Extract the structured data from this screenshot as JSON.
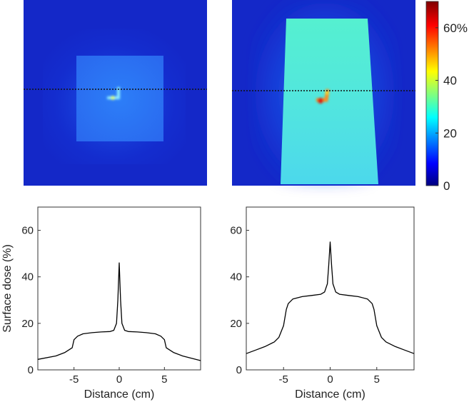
{
  "colorbar": {
    "min": 0,
    "max": 70,
    "ticks": [
      {
        "value": 0,
        "label": "0"
      },
      {
        "value": 20,
        "label": "20"
      },
      {
        "value": 40,
        "label": "40"
      },
      {
        "value": 60,
        "label": "60%"
      }
    ],
    "colormap": "jet"
  },
  "dose_maps": [
    {
      "background_dose": 6,
      "field_dose": 16,
      "hotspot_dose": 42,
      "field_shape": "square",
      "profile_line": "dotted-horizontal"
    },
    {
      "background_dose": 6,
      "field_dose": 31,
      "hotspot_dose": 52,
      "field_shape": "trapezoid",
      "profile_line": "dotted-horizontal"
    }
  ],
  "chart_data": [
    {
      "type": "line",
      "xlabel": "Distance (cm)",
      "ylabel": "Surface dose (%)",
      "xlim": [
        -9,
        9
      ],
      "ylim": [
        0,
        70
      ],
      "xticks": [
        {
          "value": -5,
          "label": "-5"
        },
        {
          "value": 0,
          "label": "0"
        },
        {
          "value": 5,
          "label": "5"
        }
      ],
      "yticks": [
        {
          "value": 0,
          "label": "0"
        },
        {
          "value": 20,
          "label": "20"
        },
        {
          "value": 40,
          "label": "40"
        },
        {
          "value": 60,
          "label": "60"
        }
      ],
      "series": [
        {
          "x": [
            -9,
            -7,
            -6,
            -5.2,
            -5,
            -4.6,
            -4,
            -3,
            -2,
            -1,
            -0.6,
            -0.3,
            -0.15,
            0,
            0.15,
            0.3,
            0.6,
            1,
            2,
            3,
            4,
            4.6,
            5,
            5.2,
            6,
            7,
            8,
            9
          ],
          "y": [
            4.5,
            6,
            7.5,
            9.5,
            13,
            14.5,
            15.5,
            16,
            16.3,
            16.5,
            17,
            20,
            30,
            46,
            30,
            20,
            17,
            16.5,
            16.3,
            16,
            15.5,
            14.5,
            13,
            9.5,
            7.5,
            6,
            5,
            4
          ]
        }
      ]
    },
    {
      "type": "line",
      "xlabel": "Distance (cm)",
      "ylabel": "",
      "xlim": [
        -9,
        9
      ],
      "ylim": [
        0,
        70
      ],
      "xticks": [
        {
          "value": -5,
          "label": "-5"
        },
        {
          "value": 0,
          "label": "0"
        },
        {
          "value": 5,
          "label": "5"
        }
      ],
      "yticks": [
        {
          "value": 0,
          "label": "0"
        },
        {
          "value": 20,
          "label": "20"
        },
        {
          "value": 40,
          "label": "40"
        },
        {
          "value": 60,
          "label": "60"
        }
      ],
      "series": [
        {
          "x": [
            -9,
            -8,
            -7,
            -6,
            -5.5,
            -5,
            -4.7,
            -4.5,
            -4,
            -3,
            -2,
            -1,
            -0.6,
            -0.3,
            -0.15,
            0,
            0.15,
            0.3,
            0.6,
            1,
            2,
            3,
            4,
            4.5,
            4.7,
            5,
            5.5,
            6,
            7,
            8,
            9
          ],
          "y": [
            7,
            8.5,
            10,
            12,
            14,
            19,
            26,
            28.5,
            30.5,
            31.5,
            32,
            32.5,
            33.5,
            37,
            45,
            55,
            45,
            37,
            33.5,
            32.5,
            32,
            31.5,
            30.5,
            28.5,
            26,
            19,
            14,
            12,
            10,
            8.5,
            7
          ]
        }
      ]
    }
  ]
}
